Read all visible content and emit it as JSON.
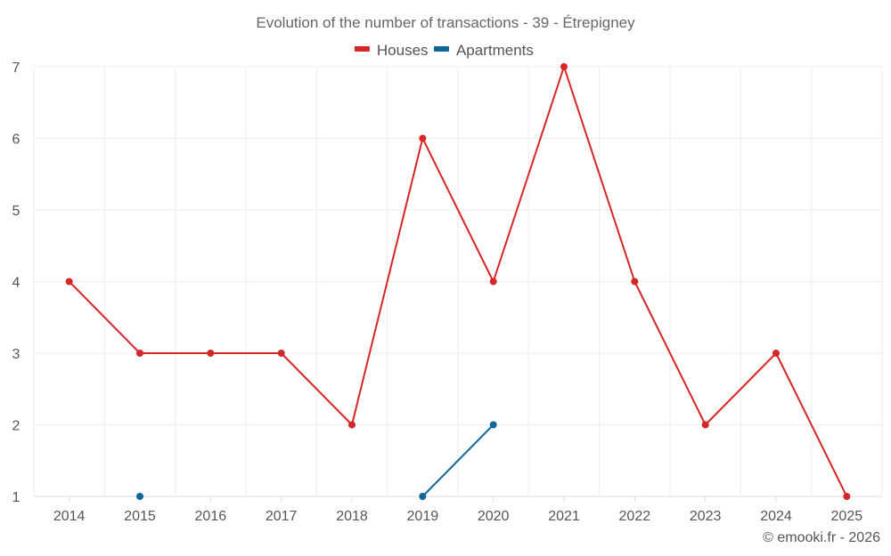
{
  "chart_data": {
    "type": "line",
    "title": "Evolution of the number of transactions - 39 - Étrepigney",
    "categories": [
      "2014",
      "2015",
      "2016",
      "2017",
      "2018",
      "2019",
      "2020",
      "2021",
      "2022",
      "2023",
      "2024",
      "2025"
    ],
    "yticks": [
      "1",
      "2",
      "3",
      "4",
      "5",
      "6",
      "7"
    ],
    "ylim": [
      1,
      7
    ],
    "grid": true,
    "legend_position": "top-center",
    "series": [
      {
        "name": "Houses",
        "color": "#d62728",
        "values": [
          4,
          3,
          3,
          3,
          2,
          6,
          4,
          7,
          4,
          2,
          3,
          1
        ]
      },
      {
        "name": "Apartments",
        "color": "#0f6699",
        "values": [
          null,
          1,
          null,
          null,
          null,
          1,
          2,
          null,
          null,
          null,
          null,
          null
        ]
      }
    ],
    "credit": "© emooki.fr - 2026"
  }
}
